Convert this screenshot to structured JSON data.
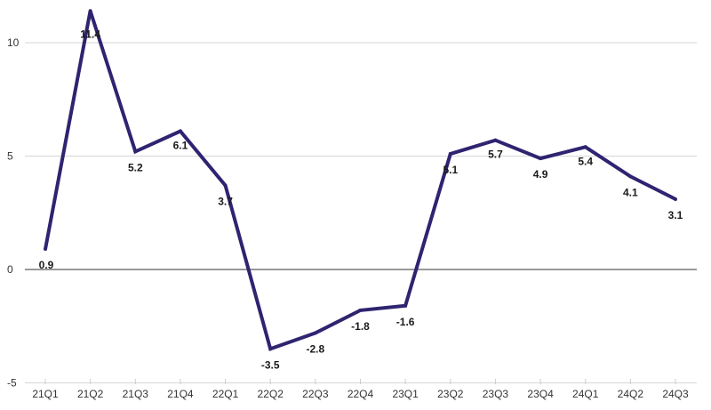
{
  "chart_data": {
    "type": "line",
    "title": "",
    "xlabel": "",
    "ylabel": "",
    "categories": [
      "21Q1",
      "21Q2",
      "21Q3",
      "21Q4",
      "22Q1",
      "22Q2",
      "22Q3",
      "22Q4",
      "23Q1",
      "23Q2",
      "23Q3",
      "23Q4",
      "24Q1",
      "24Q2",
      "24Q3"
    ],
    "series": [
      {
        "values": [
          0.9,
          11.4,
          5.2,
          6.1,
          3.7,
          -3.5,
          -2.8,
          -1.8,
          -1.6,
          5.1,
          5.7,
          4.9,
          5.4,
          4.1,
          3.1
        ],
        "labels": [
          "0.9",
          "11.4",
          "5.2",
          "6.1",
          "3.7",
          "-3.5",
          "-2.8",
          "-1.8",
          "-1.6",
          "5.1",
          "5.7",
          "4.9",
          "5.4",
          "4.1",
          "3.1"
        ],
        "color": "#2e2470"
      }
    ],
    "ylim": [
      -5,
      12
    ],
    "yticks": [
      -5,
      0,
      5,
      10
    ],
    "ytick_labels": [
      "-5",
      "0",
      "5",
      "10"
    ],
    "grid": true,
    "legend": "none"
  }
}
